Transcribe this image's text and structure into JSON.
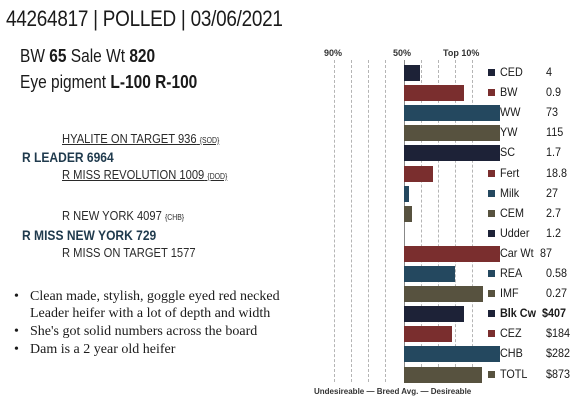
{
  "header": {
    "tag": "44264817",
    "status": "POLLED",
    "date": "03/06/2021",
    "sep": " | "
  },
  "summary": {
    "bw_label": "BW",
    "bw_value": "65",
    "sale_label": "Sale Wt",
    "sale_value": "820",
    "eye_label": "Eye pigment",
    "eye_left": "L-100",
    "eye_right": "R-100"
  },
  "pedigree": {
    "sire_sire": {
      "name": "HYALITE ON TARGET 936",
      "reg": "{SOD}"
    },
    "sire": "R LEADER 6964",
    "sire_dam": {
      "name": "R MISS REVOLUTION 1009",
      "reg": "{DOD}"
    },
    "dam_sire": {
      "name": "R NEW YORK 4097",
      "reg": "{CHB}"
    },
    "dam": "R MISS NEW YORK 729",
    "dam_dam": "R MISS ON TARGET 1577"
  },
  "bullets": [
    "Clean made, stylish, goggle eyed red necked Leader heifer with a lot of depth and width",
    "She's got solid numbers across the board",
    "Dam is a 2 year old heifer"
  ],
  "chart": {
    "axis": {
      "p90": "90%",
      "p50": "50%",
      "top10": "Top 10%"
    },
    "footer": "Undesireable — Breed Avg. —  Desireable",
    "rows": [
      {
        "trait": "CED",
        "value": "4",
        "pct": 17,
        "color": "#1d2237",
        "bold": false
      },
      {
        "trait": "BW",
        "value": "0.9",
        "pct": 62,
        "color": "#7a2e2e",
        "bold": false
      },
      {
        "trait": "WW",
        "value": "73",
        "pct": 100,
        "color": "#24485f",
        "bold": false
      },
      {
        "trait": "YW",
        "value": "115",
        "pct": 100,
        "color": "#57523f",
        "bold": false
      },
      {
        "trait": "SC",
        "value": "1.7",
        "pct": 100,
        "color": "#1d2237",
        "bold": false
      },
      {
        "trait": "Fert",
        "value": "18.8",
        "pct": 30,
        "color": "#7a2e2e",
        "bold": false
      },
      {
        "trait": "Milk",
        "value": "27",
        "pct": 5,
        "color": "#24485f",
        "bold": false
      },
      {
        "trait": "CEM",
        "value": "2.7",
        "pct": 8,
        "color": "#57523f",
        "bold": false
      },
      {
        "trait": "Udder",
        "value": "1.2",
        "pct": 0,
        "color": "#1d2237",
        "bold": false
      },
      {
        "trait": "Car Wt",
        "value": "87",
        "pct": 100,
        "color": "#7a2e2e",
        "bold": false
      },
      {
        "trait": "REA",
        "value": "0.58",
        "pct": 53,
        "color": "#24485f",
        "bold": false
      },
      {
        "trait": "IMF",
        "value": "0.27",
        "pct": 82,
        "color": "#57523f",
        "bold": false
      },
      {
        "trait": "Blk Cw",
        "value": "$407",
        "pct": 62,
        "color": "#1d2237",
        "bold": true
      },
      {
        "trait": "CEZ",
        "value": "$184",
        "pct": 50,
        "color": "#7a2e2e",
        "bold": false
      },
      {
        "trait": "CHB",
        "value": "$282",
        "pct": 100,
        "color": "#24485f",
        "bold": false
      },
      {
        "trait": "TOTL",
        "value": "$873",
        "pct": 81,
        "color": "#57523f",
        "bold": false
      }
    ]
  }
}
